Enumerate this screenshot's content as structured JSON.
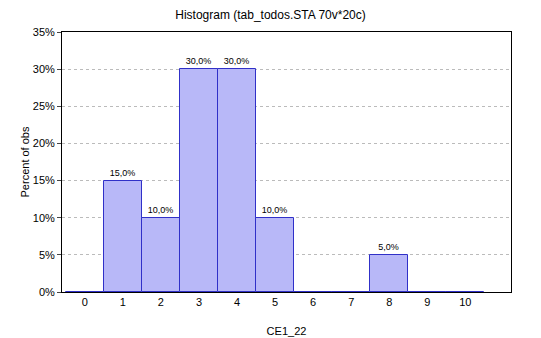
{
  "chart_data": {
    "type": "bar",
    "title": "Histogram (tab_todos.STA 70v*20c)",
    "x_label": "CE1_22",
    "y_label": "Percent of obs",
    "categories": [
      "0",
      "1",
      "2",
      "3",
      "4",
      "5",
      "6",
      "7",
      "8",
      "9",
      "10"
    ],
    "values": [
      0,
      15,
      10,
      30,
      30,
      10,
      0,
      0,
      5,
      0,
      0
    ],
    "value_labels": [
      null,
      "15,0%",
      "10,0%",
      "30,0%",
      "30,0%",
      "10,0%",
      null,
      null,
      "5,0%",
      null,
      null
    ],
    "data_labels": true,
    "color": "#b8b8f8",
    "ylim": [
      0,
      35
    ],
    "yticks": [
      {
        "value": 0,
        "label": "0%"
      },
      {
        "value": 5,
        "label": "5%"
      },
      {
        "value": 10,
        "label": "10%"
      },
      {
        "value": 15,
        "label": "15%"
      },
      {
        "value": 20,
        "label": "20%"
      },
      {
        "value": 25,
        "label": "25%"
      },
      {
        "value": 30,
        "label": "30%"
      },
      {
        "value": 35,
        "label": "35%"
      }
    ],
    "grid": true
  }
}
